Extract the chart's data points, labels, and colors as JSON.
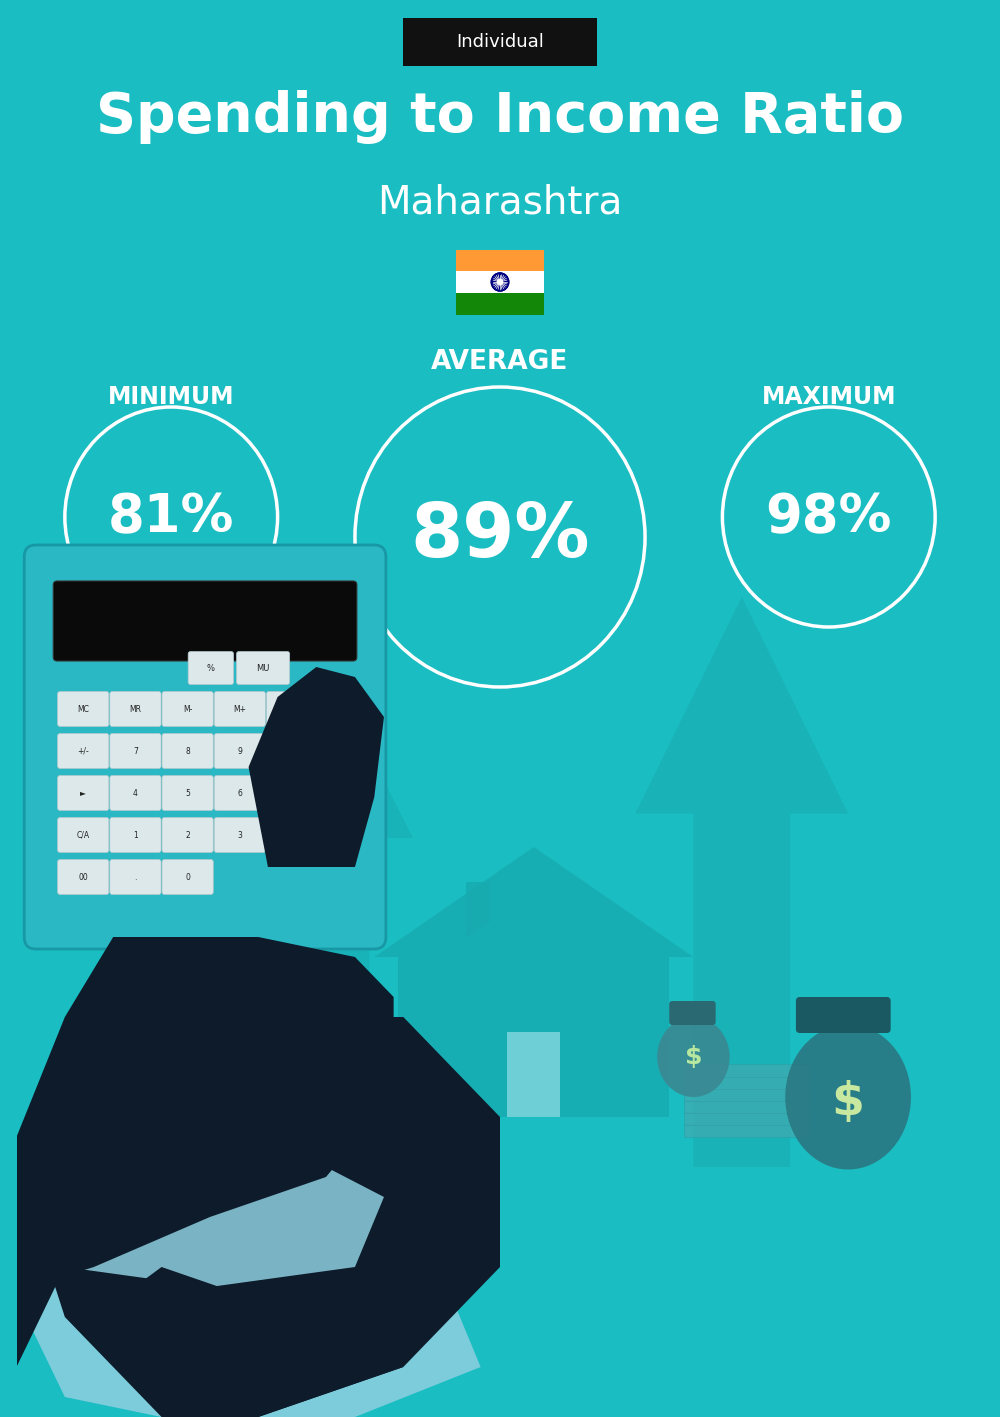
{
  "bg_color": "#1abdc2",
  "title_label": "Individual",
  "title_label_bg": "#111111",
  "title_label_color": "#ffffff",
  "main_title": "Spending to Income Ratio",
  "subtitle": "Maharashtra",
  "avg_label": "AVERAGE",
  "min_label": "MINIMUM",
  "max_label": "MAXIMUM",
  "min_value": "81%",
  "avg_value": "89%",
  "max_value": "98%",
  "circle_color": "#ffffff",
  "text_color": "#ffffff",
  "flag_saffron": "#FF9933",
  "flag_white": "#FFFFFF",
  "flag_green": "#138808",
  "flag_navy": "#000080",
  "arrow_color": "#17aaaf",
  "house_color": "#17aaaf",
  "calc_color": "#2ab8c5",
  "hand_color": "#0d1b2a",
  "cuff_color": "#8ecfe0"
}
